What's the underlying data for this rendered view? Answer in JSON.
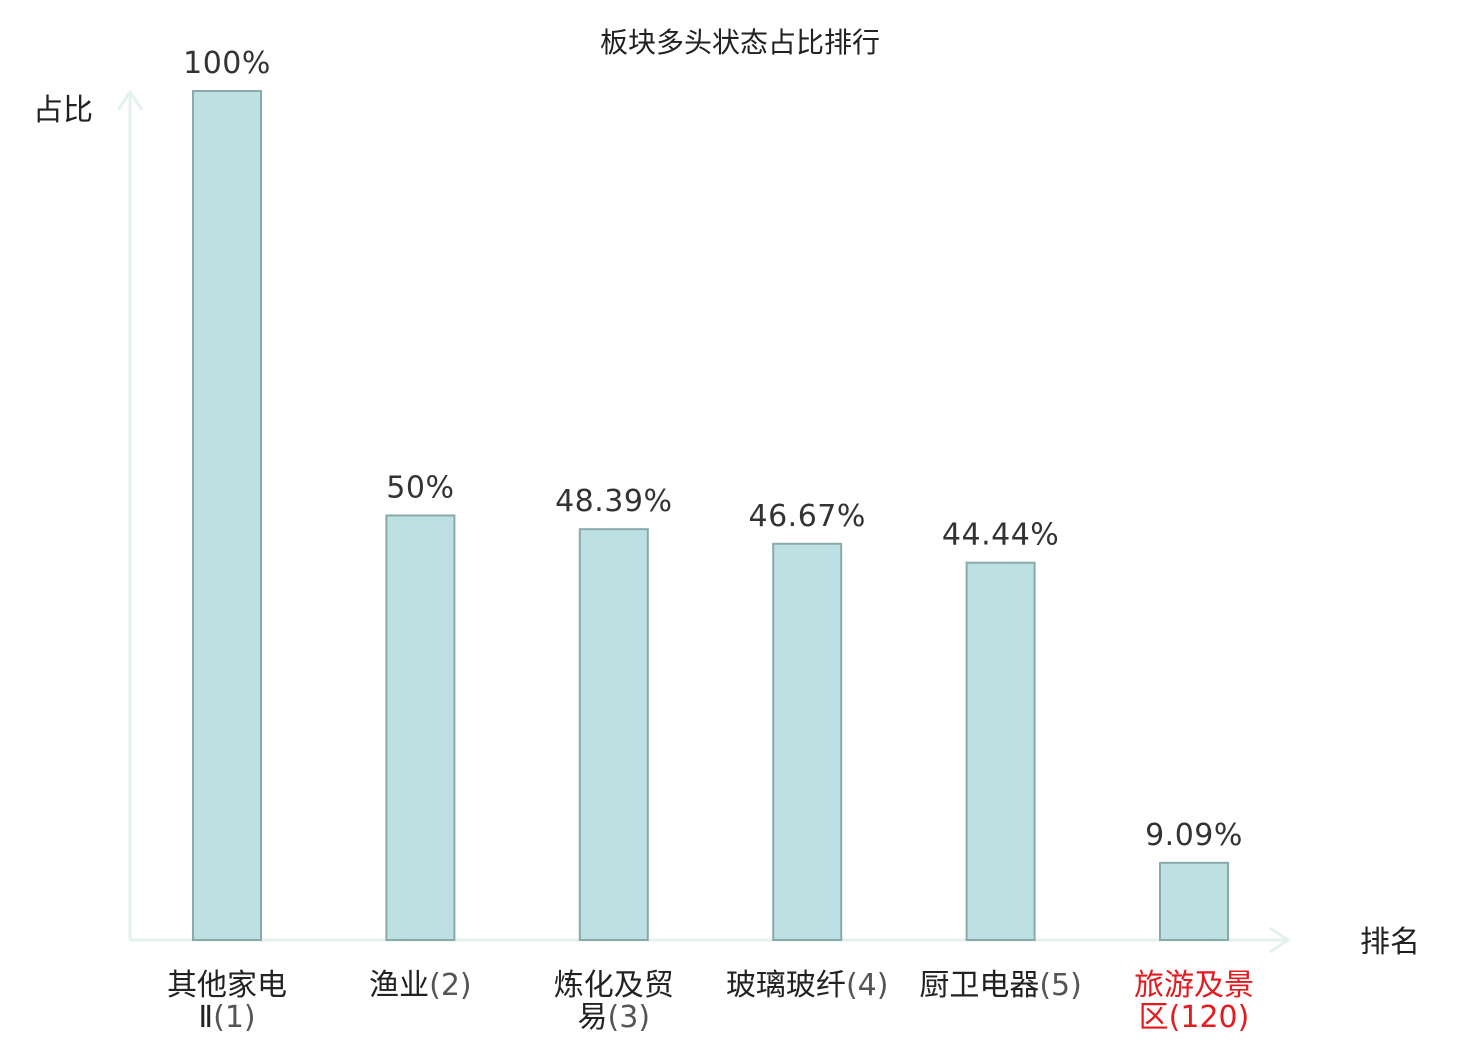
{
  "chart_data": {
    "type": "bar",
    "title": "板块多头状态占比排行",
    "xlabel": "排名",
    "ylabel": "占比",
    "ylim": [
      0,
      100
    ],
    "grid": false,
    "categories": [
      {
        "name_lines": [
          "其他家电",
          "Ⅱ"
        ],
        "rank": "(1)",
        "highlight": false
      },
      {
        "name_lines": [
          "渔业"
        ],
        "rank": "(2)",
        "highlight": false
      },
      {
        "name_lines": [
          "炼化及贸",
          "易"
        ],
        "rank": "(3)",
        "highlight": false
      },
      {
        "name_lines": [
          "玻璃玻纤"
        ],
        "rank": "(4)",
        "highlight": false
      },
      {
        "name_lines": [
          "厨卫电器"
        ],
        "rank": "(5)",
        "highlight": false
      },
      {
        "name_lines": [
          "旅游及景",
          "区"
        ],
        "rank": "(120)",
        "highlight": true
      }
    ],
    "values": [
      100,
      50,
      48.39,
      46.67,
      44.44,
      9.09
    ],
    "value_labels": [
      "100%",
      "50%",
      "48.39%",
      "46.67%",
      "44.44%",
      "9.09%"
    ],
    "colors": {
      "bar_fill": "#bde0e3",
      "bar_stroke": "#8aa9ab",
      "axis": "#e3f2ef",
      "text": "#222222",
      "rank_text": "#555555",
      "highlight": "#e41a1c"
    }
  }
}
